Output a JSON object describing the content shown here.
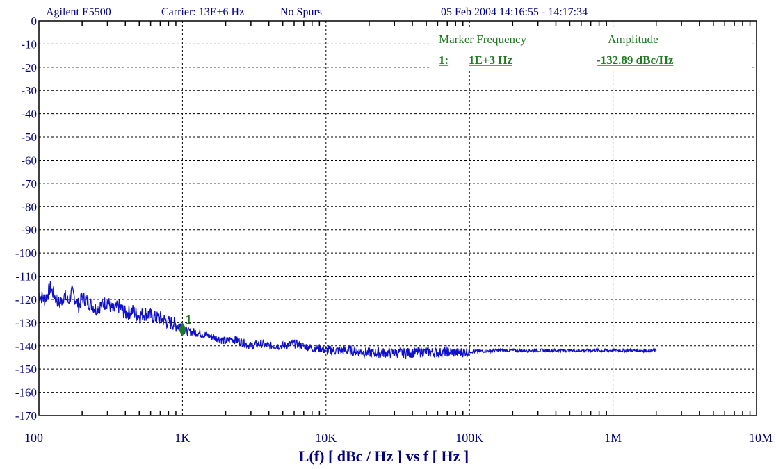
{
  "header": {
    "instrument": "Agilent E5500",
    "carrier": "Carrier: 13E+6 Hz",
    "spurs": "No Spurs",
    "timestamp": "05 Feb 2004  14:16:55 - 14:17:34"
  },
  "marker_table": {
    "freq_header": "Marker Frequency",
    "amp_header": "Amplitude",
    "row_index": "1:",
    "row_freq": "1E+3 Hz",
    "row_amp": "-132.89 dBc/Hz"
  },
  "colors": {
    "trace": "#1010c8",
    "marker": "#1e7a1e",
    "text": "#000080",
    "grid": "#000000"
  },
  "chart_data": {
    "type": "line",
    "xlabel": "L(f)  [ dBc / Hz ]  vs  f  [ Hz ]",
    "ylabel": "",
    "x_scale": "log",
    "xlim": [
      100,
      10000000
    ],
    "ylim": [
      -170,
      0
    ],
    "x_ticks": [
      {
        "value": 100,
        "label": "100"
      },
      {
        "value": 1000,
        "label": "1K"
      },
      {
        "value": 10000,
        "label": "10K"
      },
      {
        "value": 100000,
        "label": "100K"
      },
      {
        "value": 1000000,
        "label": "1M"
      },
      {
        "value": 10000000,
        "label": "10M"
      }
    ],
    "y_ticks": [
      0,
      -10,
      -20,
      -30,
      -40,
      -50,
      -60,
      -70,
      -80,
      -90,
      -100,
      -110,
      -120,
      -130,
      -140,
      -150,
      -160,
      -170
    ],
    "grid": true,
    "series": [
      {
        "x": [
          100,
          110,
          120,
          130,
          140,
          150,
          160,
          170,
          180,
          190,
          200,
          220,
          250,
          280,
          300,
          330,
          360,
          400,
          450,
          500,
          550,
          600,
          650,
          700,
          750,
          800,
          850,
          900,
          950,
          1000,
          1100,
          1200,
          1400,
          1600,
          1800,
          2000,
          2200,
          2500,
          3000,
          3500,
          4000,
          5000,
          6000,
          7000,
          8000,
          9000,
          10000,
          12000,
          15000,
          20000,
          25000,
          30000,
          40000,
          50000,
          60000,
          70000,
          80000,
          100000,
          150000,
          200000,
          300000,
          400000,
          500000,
          700000,
          1000000,
          1500000,
          2000000
        ],
        "y": [
          -118,
          -120,
          -115,
          -119,
          -122,
          -118,
          -121,
          -117,
          -120,
          -123,
          -119,
          -121,
          -124,
          -122,
          -121,
          -125,
          -123,
          -126,
          -125,
          -127,
          -126,
          -127,
          -128,
          -128,
          -129,
          -130,
          -130,
          -131,
          -131,
          -132.89,
          -134,
          -134,
          -135,
          -136,
          -137,
          -138,
          -137,
          -138,
          -140,
          -139,
          -140,
          -140,
          -139,
          -140,
          -141,
          -141,
          -142,
          -142,
          -142,
          -143,
          -143,
          -143,
          -143,
          -142.5,
          -143,
          -142.5,
          -143,
          -142.5,
          -142,
          -142,
          -142,
          -142,
          -142,
          -142,
          -142,
          -142,
          -142
        ]
      }
    ],
    "markers": [
      {
        "label": "1",
        "x": 1000,
        "y": -132.89
      }
    ]
  }
}
